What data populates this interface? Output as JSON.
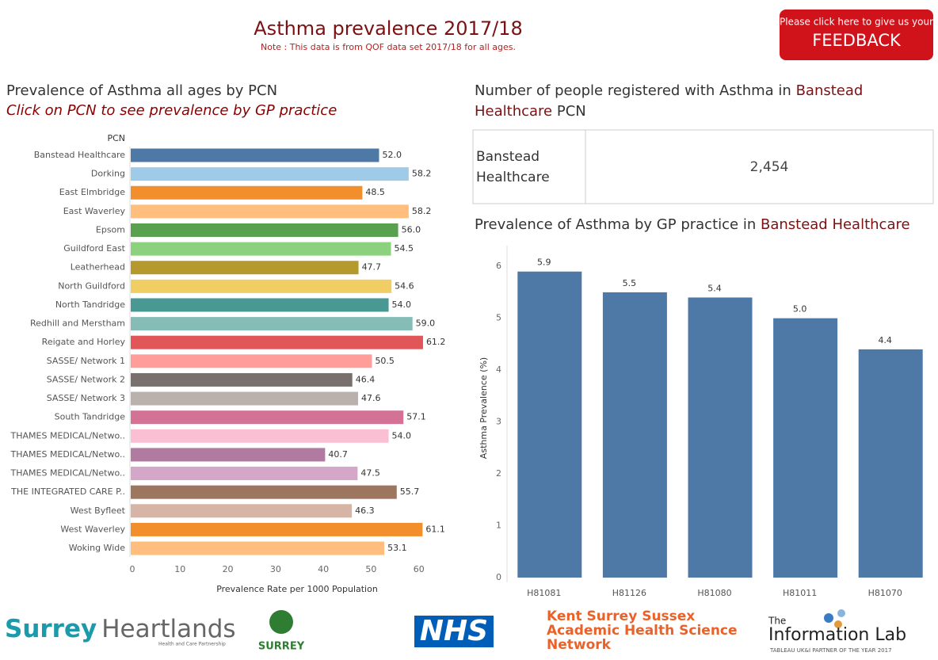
{
  "header": {
    "title": "Asthma prevalence 2017/18",
    "note": "Note :  This data is from QOF data set 2017/18 for all ages.",
    "feedback_line1": "Please click here to give us your",
    "feedback_line2": "FEEDBACK"
  },
  "kpi": {
    "title_prefix": "Number of people registered with Asthma in",
    "title_pcn": "Banstead Healthcare",
    "title_suffix": "PCN",
    "pcn": "Banstead Healthcare",
    "value": "2,454"
  },
  "chart_data": [
    {
      "type": "bar",
      "orientation": "horizontal",
      "title": "Prevalence of Asthma all ages by PCN",
      "subtitle": "Click on PCN to see prevalence by GP practice",
      "category_axis_title": "PCN",
      "xlabel": "Prevalence Rate per 1000 Population",
      "categories": [
        "Banstead Healthcare",
        "Dorking",
        "East Elmbridge",
        "East Waverley",
        "Epsom",
        "Guildford East",
        "Leatherhead",
        "North Guildford",
        "North Tandridge",
        "Redhill and Merstham",
        "Reigate and Horley",
        "SASSE/ Network 1",
        "SASSE/ Network 2",
        "SASSE/ Network 3",
        "South Tandridge",
        "THAMES MEDICAL/Netwo..",
        "THAMES MEDICAL/Netwo..",
        "THAMES MEDICAL/Netwo..",
        "THE INTEGRATED CARE P..",
        "West Byfleet",
        "West Waverley",
        "Woking Wide"
      ],
      "values": [
        52.0,
        58.2,
        48.5,
        58.2,
        56.0,
        54.5,
        47.7,
        54.6,
        54.0,
        59.0,
        61.2,
        50.5,
        46.4,
        47.6,
        57.1,
        54.0,
        40.7,
        47.5,
        55.7,
        46.3,
        61.1,
        53.1
      ],
      "value_labels": [
        "52.0",
        "58.2",
        "48.5",
        "58.2",
        "56.0",
        "54.5",
        "47.7",
        "54.6",
        "54.0",
        "59.0",
        "61.2",
        "50.5",
        "46.4",
        "47.6",
        "57.1",
        "54.0",
        "40.7",
        "47.5",
        "55.7",
        "46.3",
        "61.1",
        "53.1"
      ],
      "colors": [
        "#4e79a7",
        "#a0cbe8",
        "#f28e2b",
        "#ffbe7d",
        "#59a14f",
        "#8cd17d",
        "#b6992d",
        "#f1ce63",
        "#499894",
        "#86bcb6",
        "#e15759",
        "#ff9d9a",
        "#79706e",
        "#bab0ac",
        "#d37295",
        "#fabfd2",
        "#b07aa1",
        "#d4a6c8",
        "#9d7660",
        "#d7b5a6",
        "#f28e2b",
        "#ffbe7d"
      ],
      "xlim": [
        0,
        70
      ],
      "xticks": [
        0,
        10,
        20,
        30,
        40,
        50,
        60
      ],
      "grid": false
    },
    {
      "type": "bar",
      "orientation": "vertical",
      "title": "Prevalence of Asthma by GP practice in",
      "title_highlight": "Banstead Healthcare",
      "ylabel": "Asthma Prevalence (%)",
      "categories": [
        "H81081",
        "H81126",
        "H81080",
        "H81011",
        "H81070"
      ],
      "values": [
        5.9,
        5.5,
        5.4,
        5.0,
        4.4
      ],
      "value_labels": [
        "5.9",
        "5.5",
        "5.4",
        "5.0",
        "4.4"
      ],
      "color": "#4e79a7",
      "ylim": [
        0,
        6.4
      ],
      "yticks": [
        0,
        1,
        2,
        3,
        4,
        5,
        6
      ],
      "grid": false
    }
  ],
  "logos": {
    "surrey_heartlands": "Surrey",
    "heartlands": "Heartlands",
    "heartlands_sub": "Health and Care Partnership",
    "surrey_cc": "SURREY",
    "nhs": "NHS",
    "kss_1": "Kent Surrey Sussex",
    "kss_2": "Academic Health Science",
    "kss_3": "Network",
    "info_the": "The",
    "info_lab": "Information Lab",
    "info_sub": "TABLEAU UK&I PARTNER OF THE YEAR 2017"
  }
}
